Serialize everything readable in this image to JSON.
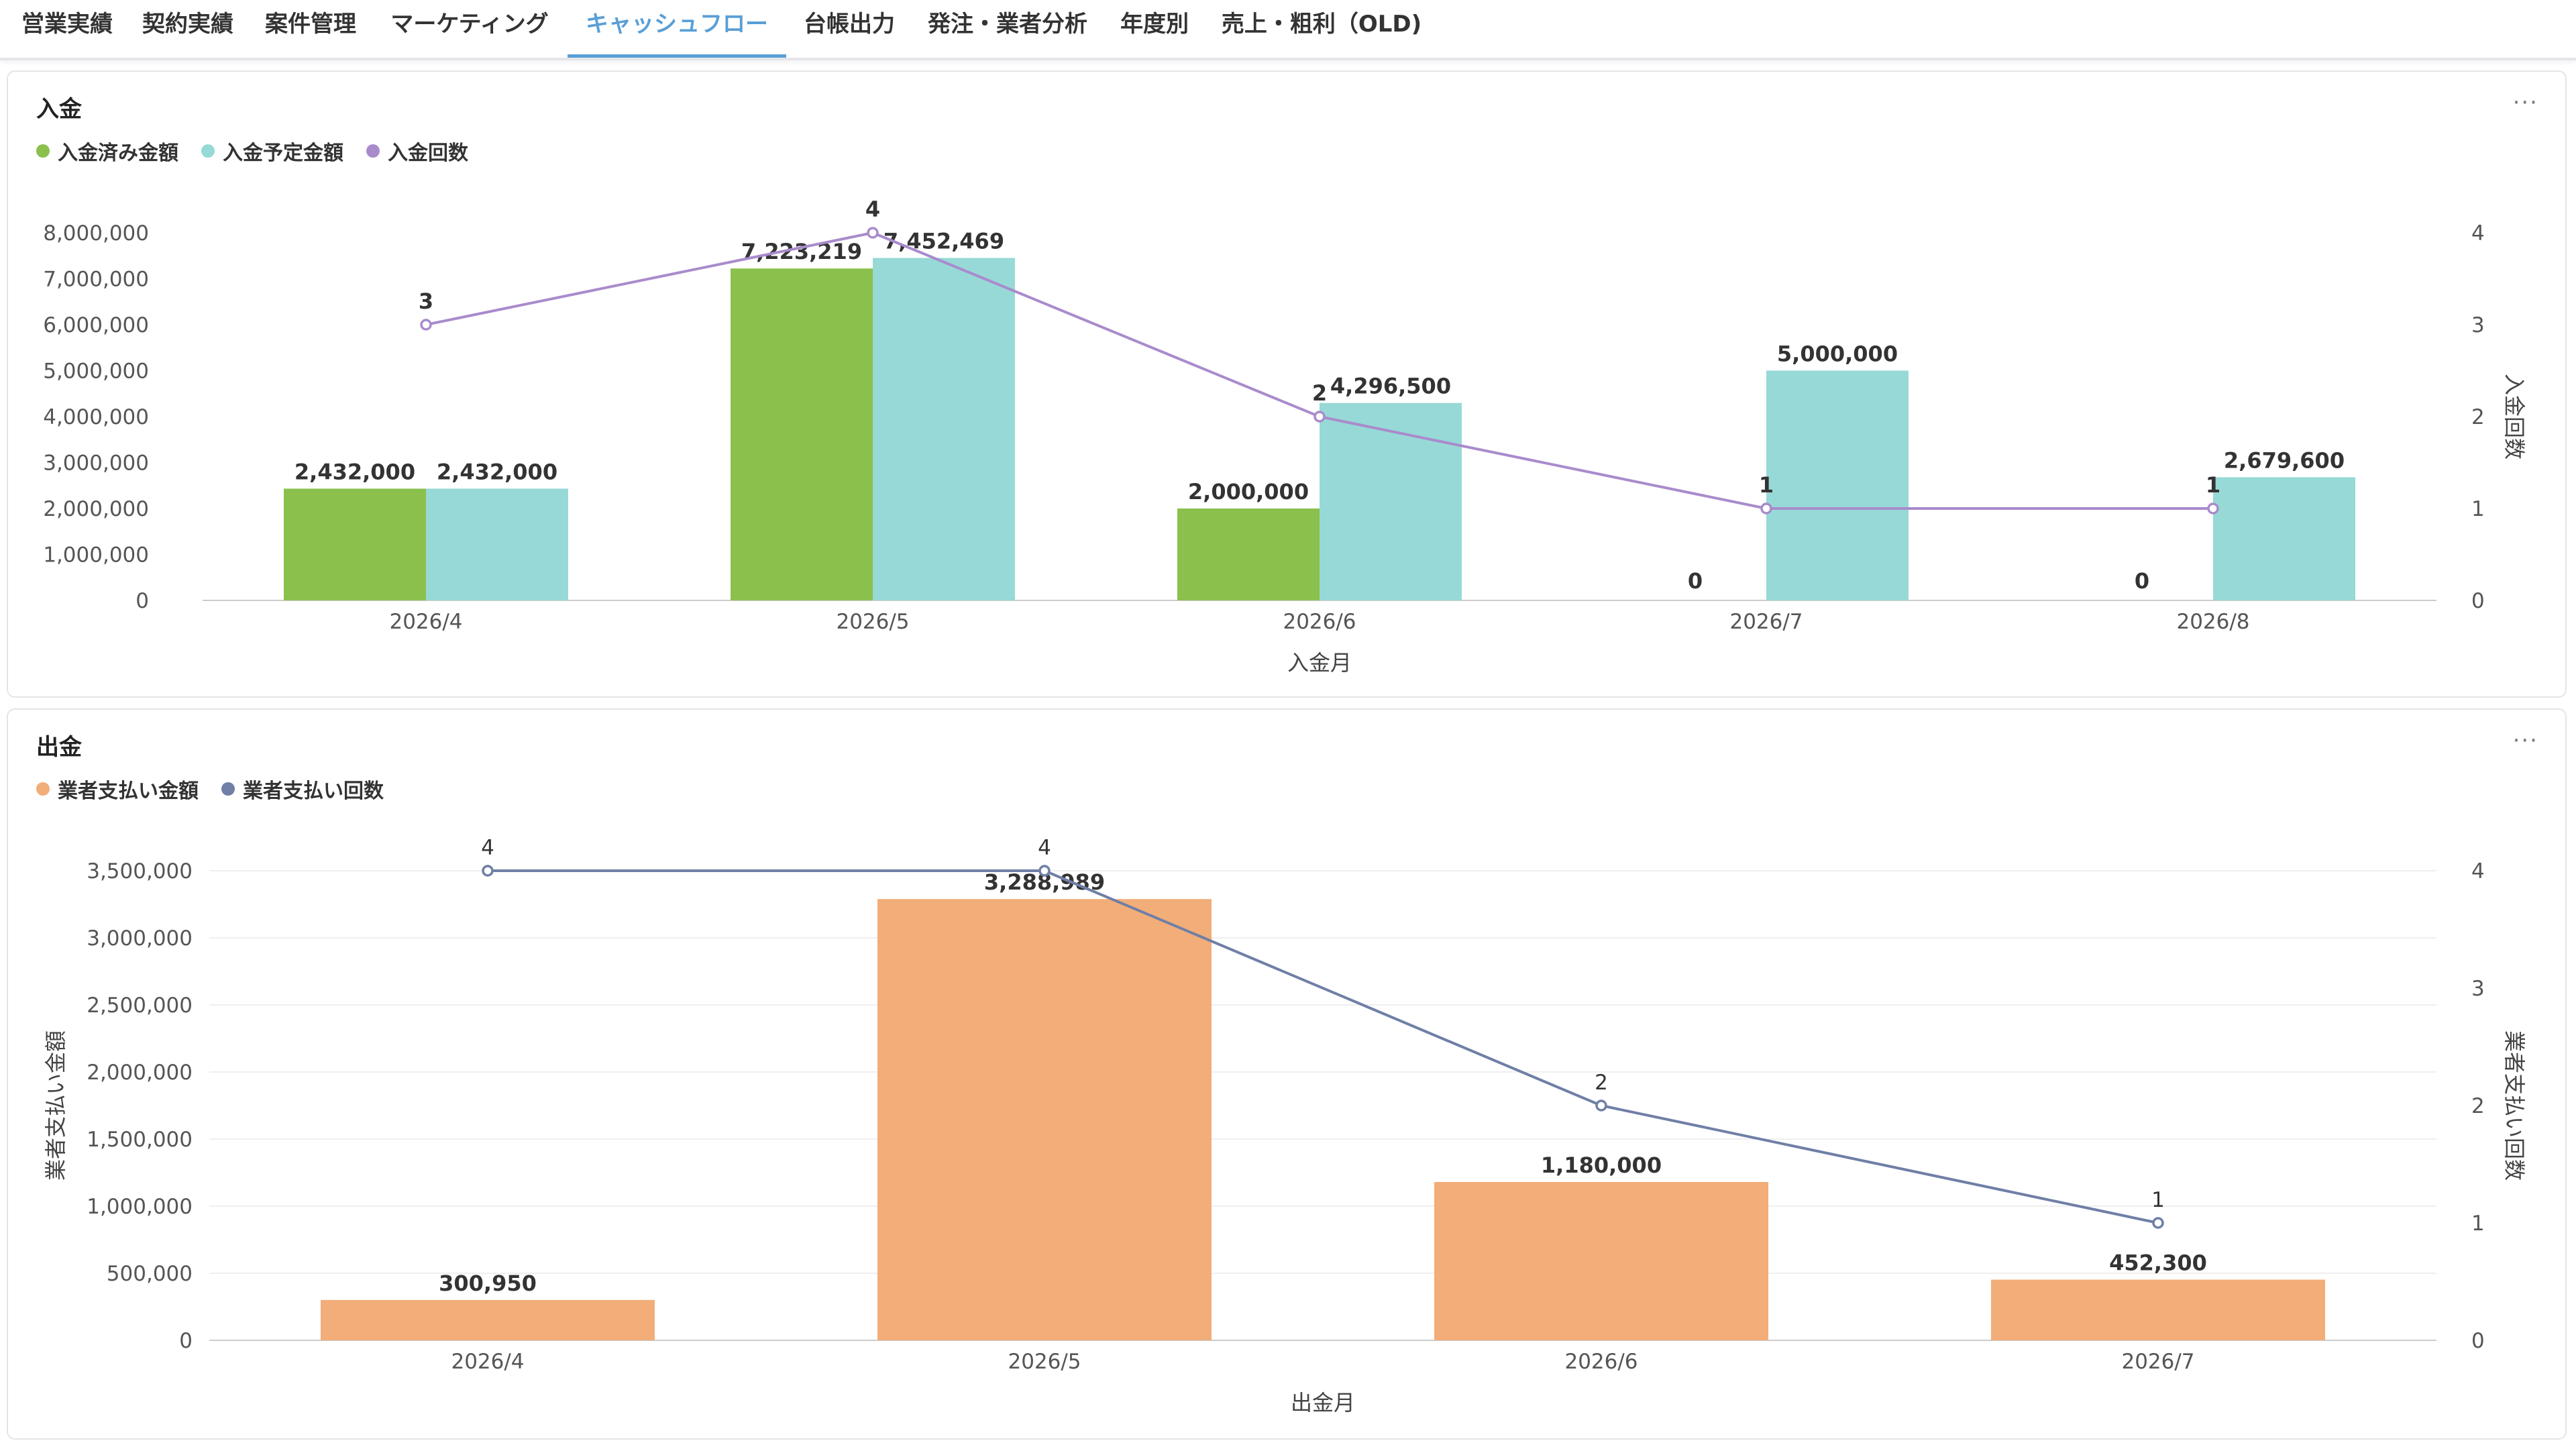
{
  "tabs": [
    {
      "label": "営業実績",
      "active": false
    },
    {
      "label": "契約実績",
      "active": false
    },
    {
      "label": "案件管理",
      "active": false
    },
    {
      "label": "マーケティング",
      "active": false
    },
    {
      "label": "キャッシュフロー",
      "active": true
    },
    {
      "label": "台帳出力",
      "active": false
    },
    {
      "label": "発注・業者分析",
      "active": false
    },
    {
      "label": "年度別",
      "active": false
    },
    {
      "label": "売上・粗利（OLD)",
      "active": false
    }
  ],
  "income": {
    "title": "入金",
    "menu_icon": "more-dots-icon",
    "legend": [
      {
        "label": "入金済み金額",
        "color": "#8bc04d"
      },
      {
        "label": "入金予定金額",
        "color": "#97d9d6"
      },
      {
        "label": "入金回数",
        "color": "#a98bcc"
      }
    ]
  },
  "expense": {
    "title": "出金",
    "menu_icon": "more-dots-icon",
    "legend": [
      {
        "label": "業者支払い金額",
        "color": "#f2ad79"
      },
      {
        "label": "業者支払い回数",
        "color": "#6f7fa6"
      }
    ]
  },
  "chart_data": [
    {
      "type": "bar",
      "title": "入金",
      "categories": [
        "2026/4",
        "2026/5",
        "2026/6",
        "2026/7",
        "2026/8"
      ],
      "series": [
        {
          "name": "入金済み金額",
          "type": "bar",
          "axis": "left",
          "color": "#8bc04d",
          "values": [
            2432000,
            7223219,
            2000000,
            0,
            0
          ],
          "labels": [
            "2,432,000",
            "7,223,219",
            "2,000,000",
            "0",
            "0"
          ]
        },
        {
          "name": "入金予定金額",
          "type": "bar",
          "axis": "left",
          "color": "#97d9d6",
          "values": [
            2432000,
            7452469,
            4296500,
            5000000,
            2679600
          ],
          "labels": [
            "2,432,000",
            "7,452,469",
            "4,296,500",
            "5,000,000",
            "2,679,600"
          ]
        },
        {
          "name": "入金回数",
          "type": "line",
          "axis": "right",
          "color": "#a98bcc",
          "values": [
            3,
            4,
            2,
            1,
            1
          ],
          "labels": [
            "3",
            "4",
            "2",
            "1",
            "1"
          ]
        }
      ],
      "xlabel": "入金月",
      "ylabel": "",
      "y2label": "入金回数",
      "ylim": [
        0,
        8000000
      ],
      "y2lim": [
        0,
        4
      ],
      "yticks": [
        "0",
        "1,000,000",
        "2,000,000",
        "3,000,000",
        "4,000,000",
        "5,000,000",
        "6,000,000",
        "7,000,000",
        "8,000,000"
      ],
      "y2ticks": [
        "0",
        "1",
        "2",
        "3",
        "4"
      ],
      "grid": false,
      "legend": "top-left"
    },
    {
      "type": "bar",
      "title": "出金",
      "categories": [
        "2026/4",
        "2026/5",
        "2026/6",
        "2026/7"
      ],
      "series": [
        {
          "name": "業者支払い金額",
          "type": "bar",
          "axis": "left",
          "color": "#f2ad79",
          "values": [
            300950,
            3288989,
            1180000,
            452300
          ],
          "labels": [
            "300,950",
            "3,288,989",
            "1,180,000",
            "452,300"
          ]
        },
        {
          "name": "業者支払い回数",
          "type": "line",
          "axis": "right",
          "color": "#6f7fa6",
          "values": [
            4,
            4,
            2,
            1
          ],
          "labels": [
            "4",
            "4",
            "2",
            "1"
          ]
        }
      ],
      "xlabel": "出金月",
      "ylabel": "業者支払い金額",
      "y2label": "業者支払い回数",
      "ylim": [
        0,
        3500000
      ],
      "y2lim": [
        0,
        4
      ],
      "yticks": [
        "0",
        "500,000",
        "1,000,000",
        "1,500,000",
        "2,000,000",
        "2,500,000",
        "3,000,000",
        "3,500,000"
      ],
      "y2ticks": [
        "0",
        "1",
        "2",
        "3",
        "4"
      ],
      "grid": true,
      "legend": "top-left"
    }
  ]
}
